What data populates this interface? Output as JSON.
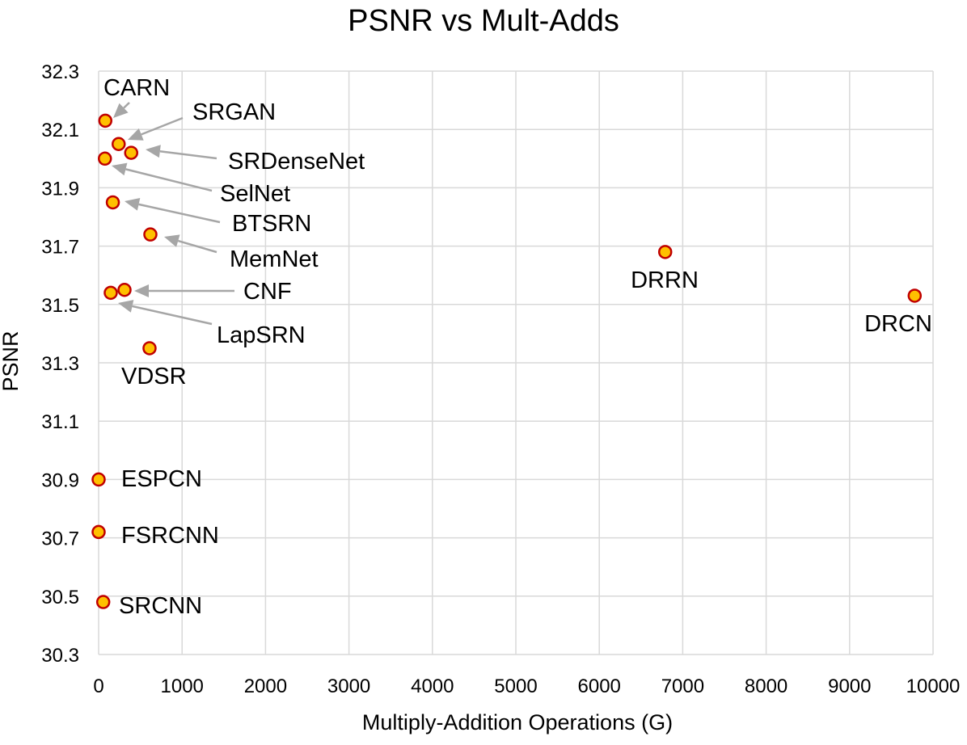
{
  "chart_data": {
    "type": "scatter",
    "title": "PSNR vs Mult-Adds",
    "xlabel": "Multiply-Addition Operations (G)",
    "ylabel": "PSNR",
    "xlim": [
      0,
      10000
    ],
    "ylim": [
      30.3,
      32.3
    ],
    "x_ticks": [
      0,
      1000,
      2000,
      3000,
      4000,
      5000,
      6000,
      7000,
      8000,
      9000,
      10000
    ],
    "y_ticks": [
      "30.3",
      "30.5",
      "30.7",
      "30.9",
      "31.1",
      "31.3",
      "31.5",
      "31.7",
      "31.9",
      "32.1",
      "32.3"
    ],
    "grid": true,
    "marker_fill": "#ffc000",
    "marker_edge": "#c00000",
    "annotation_color": "#a6a6a6",
    "points": [
      {
        "name": "CARN",
        "x": 80,
        "y": 32.13
      },
      {
        "name": "SRGAN",
        "x": 240,
        "y": 32.05
      },
      {
        "name": "SRDenseNet",
        "x": 390,
        "y": 32.02
      },
      {
        "name": "SelNet",
        "x": 75,
        "y": 32.0
      },
      {
        "name": "BTSRN",
        "x": 170,
        "y": 31.85
      },
      {
        "name": "MemNet",
        "x": 620,
        "y": 31.74
      },
      {
        "name": "CNF",
        "x": 310,
        "y": 31.55
      },
      {
        "name": "LapSRN",
        "x": 145,
        "y": 31.54
      },
      {
        "name": "VDSR",
        "x": 610,
        "y": 31.35
      },
      {
        "name": "DRRN",
        "x": 6790,
        "y": 31.68
      },
      {
        "name": "DRCN",
        "x": 9780,
        "y": 31.53
      },
      {
        "name": "ESPCN",
        "x": 0,
        "y": 30.9
      },
      {
        "name": "FSRCNN",
        "x": 0,
        "y": 30.72
      },
      {
        "name": "SRCNN",
        "x": 55,
        "y": 30.48
      }
    ]
  }
}
